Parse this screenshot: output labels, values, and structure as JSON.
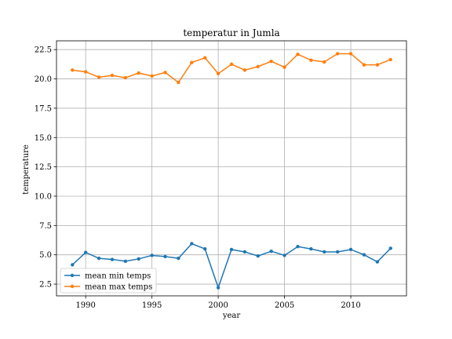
{
  "chart_data": {
    "type": "line",
    "title": "temperatur in Jumla",
    "xlabel": "year",
    "ylabel": "temperature",
    "x": [
      1989,
      1990,
      1991,
      1992,
      1993,
      1994,
      1995,
      1996,
      1997,
      1998,
      1999,
      2000,
      2001,
      2002,
      2003,
      2004,
      2005,
      2006,
      2007,
      2008,
      2009,
      2010,
      2011,
      2012,
      2013
    ],
    "series": [
      {
        "name": "mean min temps",
        "color": "#1f77b4",
        "values": [
          4.15,
          5.2,
          4.7,
          4.6,
          4.45,
          4.65,
          4.95,
          4.85,
          4.7,
          5.95,
          5.5,
          2.2,
          5.45,
          5.25,
          4.9,
          5.3,
          4.95,
          5.7,
          5.5,
          5.25,
          5.25,
          5.45,
          5.0,
          4.4,
          5.55
        ]
      },
      {
        "name": "mean max temps",
        "color": "#ff7f0e",
        "values": [
          20.75,
          20.6,
          20.15,
          20.3,
          20.1,
          20.5,
          20.25,
          20.55,
          19.7,
          21.4,
          21.8,
          20.45,
          21.25,
          20.75,
          21.05,
          21.5,
          21.0,
          22.1,
          21.6,
          21.45,
          22.15,
          22.15,
          21.2,
          21.2,
          21.65
        ]
      }
    ],
    "xlim": [
      1987.8,
      2014.2
    ],
    "ylim": [
      1.5,
      23.25
    ],
    "xticks": [
      1990,
      1995,
      2000,
      2005,
      2010
    ],
    "xtick_labels": [
      "1990",
      "1995",
      "2000",
      "2005",
      "2010"
    ],
    "yticks": [
      2.5,
      5.0,
      7.5,
      10.0,
      12.5,
      15.0,
      17.5,
      20.0,
      22.5
    ],
    "ytick_labels": [
      "2.5",
      "5.0",
      "7.5",
      "10.0",
      "12.5",
      "15.0",
      "17.5",
      "20.0",
      "22.5"
    ],
    "grid": true,
    "legend_position": "lower-left"
  }
}
